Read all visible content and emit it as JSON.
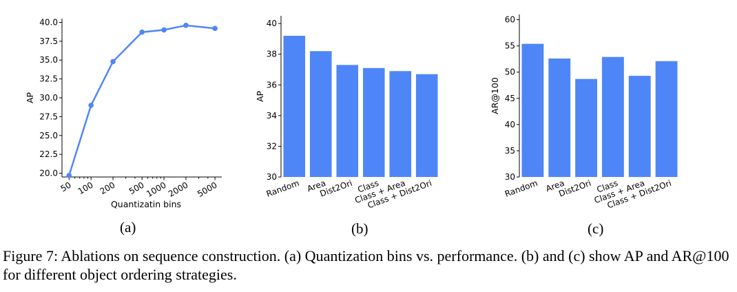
{
  "chart_data": [
    {
      "type": "line",
      "categories": [
        "50",
        "100",
        "200",
        "500",
        "1000",
        "2000",
        "5000"
      ],
      "values": [
        19.7,
        29.0,
        34.8,
        38.7,
        39.0,
        39.6,
        39.2
      ],
      "xlabel": "Quantizatin bins",
      "ylabel": "AP",
      "ylim": [
        19.5,
        40.5
      ],
      "yticks": [
        "20.0",
        "22.5",
        "25.0",
        "27.5",
        "30.0",
        "32.5",
        "35.0",
        "37.5",
        "40.0"
      ],
      "x_scale": "log",
      "color": "#4f86f7"
    },
    {
      "type": "bar",
      "categories": [
        "Random",
        "Area",
        "Dist2Ori",
        "Class",
        "Class + Area",
        "Class + Dist2Ori"
      ],
      "values": [
        39.2,
        38.2,
        37.3,
        37.1,
        36.9,
        36.7
      ],
      "ylabel": "AP",
      "ylim": [
        30,
        40.5
      ],
      "yticks": [
        "30",
        "32",
        "34",
        "36",
        "38",
        "40"
      ],
      "color": "#4f86f7"
    },
    {
      "type": "bar",
      "categories": [
        "Random",
        "Area",
        "Dist2Ori",
        "Class",
        "Class + Area",
        "Class + Dist2Ori"
      ],
      "values": [
        55.4,
        52.6,
        48.7,
        52.9,
        49.3,
        52.1
      ],
      "ylabel": "AR@100",
      "ylim": [
        30,
        61
      ],
      "yticks": [
        "30",
        "35",
        "40",
        "45",
        "50",
        "55",
        "60"
      ],
      "color": "#4f86f7"
    }
  ],
  "subcaptions": [
    "(a)",
    "(b)",
    "(c)"
  ],
  "caption": "Figure 7:  Ablations on sequence construction. (a) Quantization bins vs. performance. (b) and (c) show AP and AR@100 for different object ordering strategies."
}
